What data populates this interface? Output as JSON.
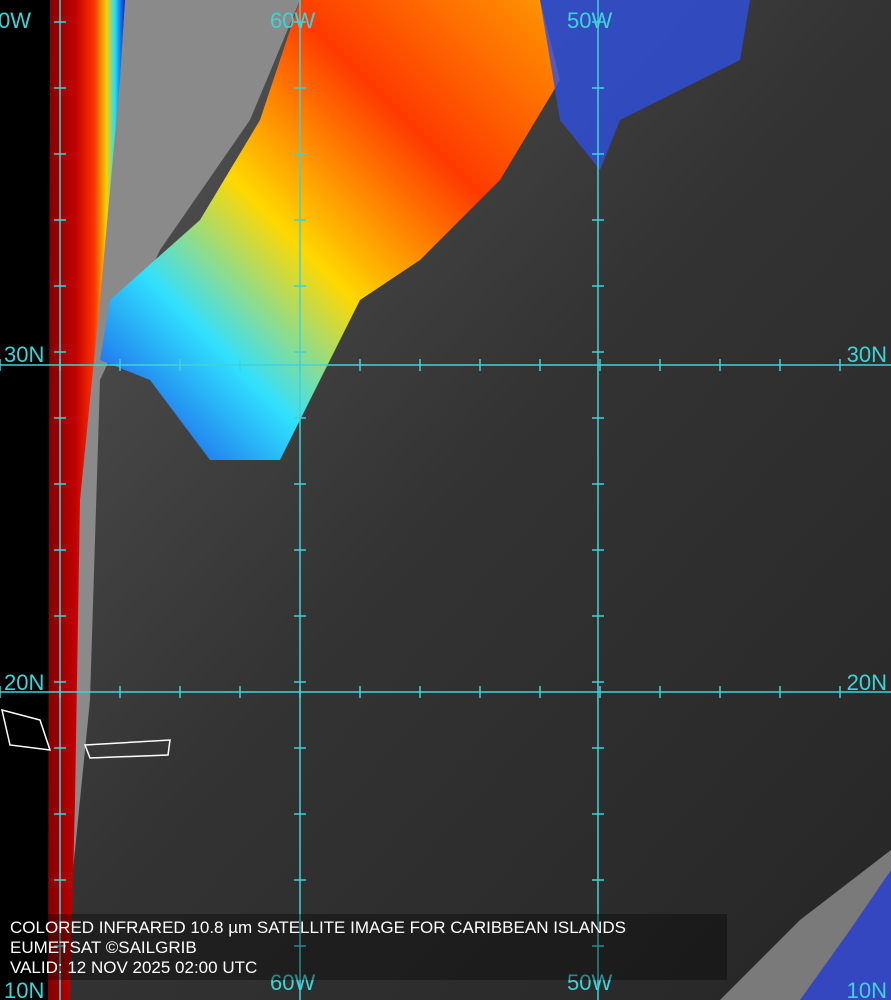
{
  "grid_labels": {
    "top": [
      "0W",
      "60W",
      "50W"
    ],
    "left": [
      "30N",
      "20N",
      "10N"
    ],
    "right": [
      "30N",
      "20N",
      "10N"
    ],
    "bottom": [
      "60W",
      "50W"
    ]
  },
  "caption": [
    "COLORED INFRARED 10.8 µm SATELLITE IMAGE FOR CARIBBEAN ISLANDS",
    "EUMETSAT ©SAILGRIB",
    "VALID:  12 NOV 2025 02:00 UTC"
  ]
}
